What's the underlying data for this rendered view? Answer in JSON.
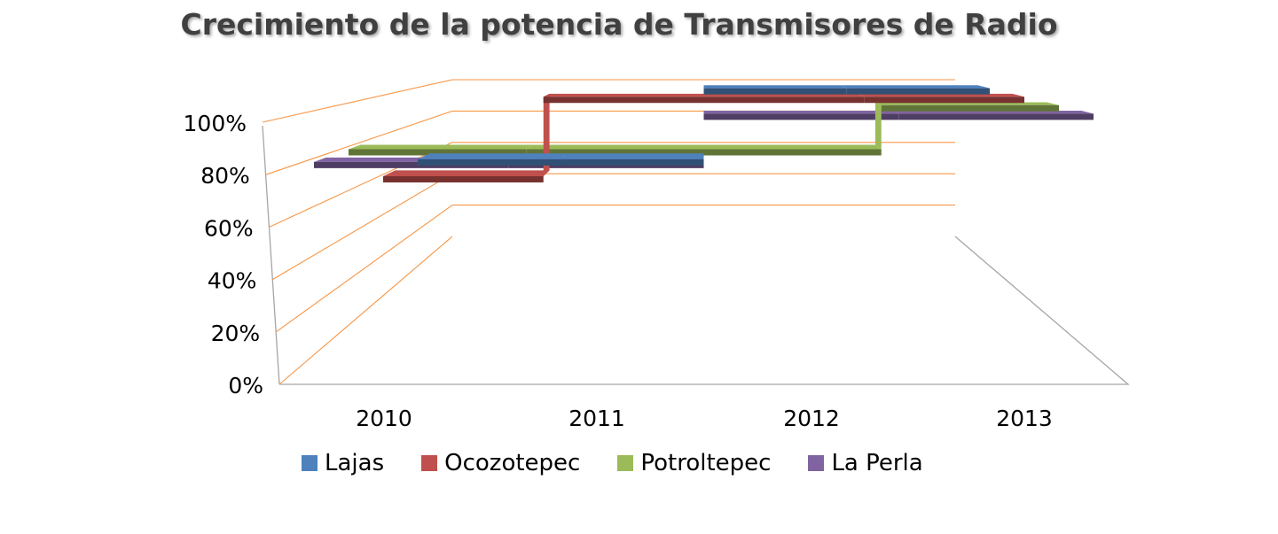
{
  "chart_data": {
    "type": "line",
    "view": "3d",
    "title": "Crecimiento de la potencia de Transmisores de Radio",
    "xlabel": "",
    "ylabel": "",
    "categories": [
      "2010",
      "2011",
      "2012",
      "2013"
    ],
    "y_ticks": [
      "0%",
      "20%",
      "40%",
      "60%",
      "80%",
      "100%"
    ],
    "ylim": [
      0,
      100
    ],
    "grid": true,
    "legend_position": "bottom",
    "series": [
      {
        "name": "Lajas",
        "color": "#4F81BD",
        "values": [
          60,
          60,
          100,
          100
        ]
      },
      {
        "name": "Ocozotepec",
        "color": "#C0504D",
        "values": [
          60,
          100,
          100,
          100
        ]
      },
      {
        "name": "Potroltepec",
        "color": "#9BBB59",
        "values": [
          80,
          80,
          80,
          100
        ]
      },
      {
        "name": "La Perla",
        "color": "#8064A2",
        "values": [
          80,
          80,
          100,
          100
        ]
      }
    ],
    "grid_color": "#F79646",
    "wall_color": "#A6A6A6"
  }
}
